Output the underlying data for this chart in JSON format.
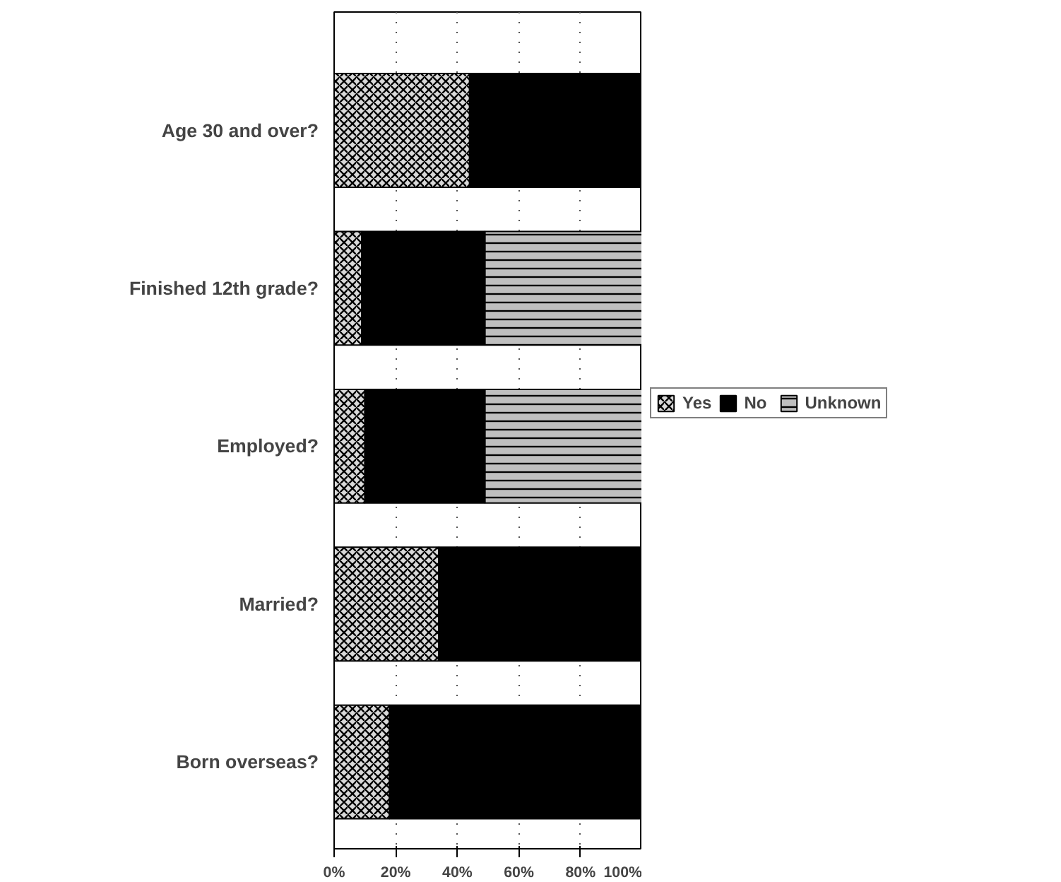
{
  "chart_data": {
    "type": "bar",
    "orientation": "horizontal",
    "stacked": true,
    "categories": [
      "Age 30 and over?",
      "Finished 12th grade?",
      "Employed?",
      "Married?",
      "Born overseas?"
    ],
    "series": [
      {
        "name": "Yes",
        "color": "#d9d9d9",
        "values": [
          44,
          9,
          10,
          34,
          18
        ]
      },
      {
        "name": "No",
        "color": "#000000",
        "values": [
          56,
          40,
          39,
          66,
          82
        ]
      },
      {
        "name": "Unknown",
        "color": "#bfbfbf",
        "values": [
          null,
          51,
          51,
          null,
          null
        ]
      }
    ],
    "xlim": [
      0,
      100
    ],
    "xticks": [
      {
        "value": 0,
        "label": "0%"
      },
      {
        "value": 20,
        "label": "20%"
      },
      {
        "value": 40,
        "label": "40%"
      },
      {
        "value": 60,
        "label": "60%"
      },
      {
        "value": 80,
        "label": "80%"
      },
      {
        "value": 100,
        "label": "100%"
      }
    ],
    "grid": "x",
    "legend": "right"
  }
}
